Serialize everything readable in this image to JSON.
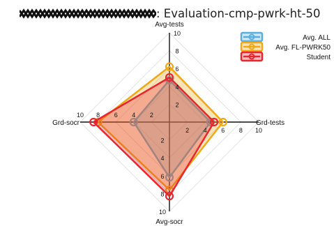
{
  "title": {
    "redacted_prefix": "XXXXXXXXXXXXXXXXXXX",
    "text": ": Evaluation-cmp-pwrk-ht-50"
  },
  "chart_data": {
    "type": "radar",
    "axes": [
      {
        "key": "avg_tests",
        "label": "Avg-tests"
      },
      {
        "key": "grd_tests",
        "label": "Grd-tests"
      },
      {
        "key": "avg_socr",
        "label": "Avg-socr"
      },
      {
        "key": "grd_socr",
        "label": "Grd-socr"
      }
    ],
    "range": [
      0,
      10
    ],
    "ticks": [
      2,
      4,
      6,
      8,
      10
    ],
    "grid": true,
    "legend_position": "top-right",
    "series": [
      {
        "name": "Avg. ALL",
        "values": [
          4.7,
          4.6,
          6.2,
          4.0
        ],
        "color": "#5aaedd"
      },
      {
        "name": "Avg. FL-PWRK50",
        "values": [
          6.2,
          6.0,
          7.6,
          8.0
        ],
        "color": "#f0a818"
      },
      {
        "name": "Student",
        "values": [
          5.0,
          5.0,
          8.3,
          8.5
        ],
        "color": "#e8262e"
      }
    ]
  }
}
